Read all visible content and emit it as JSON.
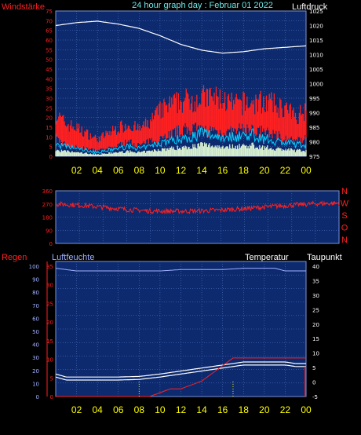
{
  "title": "24 hour graph day : Februar 01 2022",
  "colors": {
    "background": "#000000",
    "plot_bg": "#0d2a6e",
    "grid": "#5a7fd0",
    "border": "#7a92d8",
    "wind": "#ff2020",
    "gust": "#1a66ff",
    "pressure": "#ffffff",
    "temperature": "#ffffff",
    "dewpoint": "#ffffff",
    "rain": "#ff2020",
    "humidity": "#9fb0ff",
    "title": "#70e6e6",
    "xtick": "#ffff00",
    "left_label": "#ff2020",
    "right_label": "#ffffff"
  },
  "chart_data": [
    {
      "type": "line",
      "id": "wind-pressure",
      "title": "24 hour graph day : Februar 01 2022",
      "ylabel_left": "Windstärke",
      "ylabel_right": "Luftdruck",
      "x_ticks": [
        "02",
        "04",
        "06",
        "08",
        "10",
        "12",
        "14",
        "16",
        "18",
        "20",
        "22",
        "00"
      ],
      "y_left_ticks": [
        "75",
        "70",
        "65",
        "60",
        "55",
        "50",
        "45",
        "40",
        "35",
        "30",
        "25",
        "20",
        "15",
        "10",
        "5",
        "0"
      ],
      "y_right_ticks": [
        "1025",
        "1020",
        "1015",
        "1010",
        "1005",
        "1000",
        "995",
        "990",
        "985",
        "980",
        "975"
      ],
      "ylim_left": [
        0,
        75
      ],
      "ylim_right": [
        975,
        1025
      ],
      "grid": true,
      "series": [
        {
          "key": "pressure",
          "axis": "right",
          "x": [
            0,
            2,
            4,
            6,
            8,
            10,
            12,
            14,
            16,
            18,
            20,
            22,
            24
          ],
          "values": [
            1020,
            1021,
            1021.5,
            1020.5,
            1019,
            1016.5,
            1013.5,
            1011.5,
            1010.5,
            1011,
            1012,
            1012.5,
            1013
          ]
        },
        {
          "key": "wind_max",
          "axis": "left",
          "x": [
            0,
            1,
            2,
            3,
            4,
            5,
            6,
            7,
            8,
            9,
            10,
            11,
            12,
            13,
            14,
            15,
            16,
            17,
            18,
            19,
            20,
            21,
            22,
            23,
            24
          ],
          "values": [
            22,
            17,
            15,
            12,
            9,
            12,
            15,
            17,
            14,
            18,
            24,
            27,
            29,
            30,
            31,
            31,
            30,
            27,
            28,
            28,
            29,
            27,
            25,
            21,
            25
          ]
        },
        {
          "key": "wind_min",
          "axis": "left",
          "x": [
            0,
            1,
            2,
            3,
            4,
            5,
            6,
            7,
            8,
            9,
            10,
            11,
            12,
            13,
            14,
            15,
            16,
            17,
            18,
            19,
            20,
            21,
            22,
            23,
            24
          ],
          "values": [
            10,
            6,
            5,
            4,
            3,
            4,
            6,
            8,
            6,
            8,
            10,
            12,
            14,
            15,
            14,
            14,
            13,
            13,
            15,
            14,
            13,
            12,
            10,
            8,
            10
          ]
        },
        {
          "key": "gust",
          "axis": "left",
          "x": [
            0,
            1,
            2,
            3,
            4,
            5,
            6,
            7,
            8,
            9,
            10,
            11,
            12,
            13,
            14,
            15,
            16,
            17,
            18,
            19,
            20,
            21,
            22,
            23,
            24
          ],
          "values": [
            6,
            5,
            4,
            3,
            2,
            3,
            4,
            5,
            4,
            5,
            7,
            8,
            9,
            10,
            12,
            11,
            10,
            10,
            11,
            11,
            9,
            8,
            7,
            6,
            6
          ]
        }
      ]
    },
    {
      "type": "line",
      "id": "wind-direction",
      "x_ticks": [],
      "y_left_ticks": [
        "360",
        "270",
        "180",
        "90",
        "0"
      ],
      "y_right_ticks": [
        "N",
        "W",
        "S",
        "O",
        "N"
      ],
      "ylim": [
        0,
        360
      ],
      "grid": true,
      "series": [
        {
          "key": "direction",
          "x": [
            0,
            2,
            4,
            6,
            8,
            10,
            12,
            14,
            16,
            18,
            20,
            22,
            24
          ],
          "values": [
            270,
            262,
            248,
            232,
            222,
            220,
            222,
            228,
            238,
            250,
            262,
            272,
            275
          ]
        }
      ]
    },
    {
      "type": "line",
      "id": "rain-humidity-temp",
      "ylabel_left": "Regen",
      "ylabel_left2": "Luftfeuchte",
      "ylabel_right": "Temperatur",
      "ylabel_right2": "Taupunkt",
      "x_ticks": [
        "02",
        "04",
        "06",
        "08",
        "10",
        "12",
        "14",
        "16",
        "18",
        "20",
        "22",
        "00"
      ],
      "y_left_ticks": [
        "100",
        "90",
        "80",
        "70",
        "60",
        "50",
        "40",
        "30",
        "20",
        "10",
        "0"
      ],
      "y_mid_ticks": [
        "35",
        "30",
        "25",
        "20",
        "15",
        "10",
        "5",
        "0"
      ],
      "y_right_ticks": [
        "40",
        "35",
        "30",
        "25",
        "20",
        "15",
        "10",
        "5",
        "0",
        "-5"
      ],
      "ylim_left": [
        0,
        100
      ],
      "ylim_right": [
        -5,
        40
      ],
      "grid": true,
      "series": [
        {
          "key": "humidity",
          "axis": "left",
          "x": [
            0,
            1,
            2,
            4,
            6,
            8,
            10,
            12,
            14,
            16,
            18,
            20,
            21,
            22,
            24
          ],
          "values": [
            95,
            94,
            93,
            93,
            93,
            93,
            93,
            94,
            94,
            94,
            95,
            95,
            95,
            93,
            93
          ]
        },
        {
          "key": "temperature",
          "axis": "right",
          "x": [
            0,
            1,
            2,
            4,
            6,
            8,
            10,
            12,
            14,
            16,
            17,
            18,
            20,
            22,
            23,
            24
          ],
          "values": [
            2.5,
            1.5,
            1.5,
            1.5,
            1.5,
            1.7,
            2.5,
            3.5,
            4.5,
            5.5,
            6,
            6.5,
            6.5,
            6.5,
            6,
            6
          ]
        },
        {
          "key": "dewpoint",
          "axis": "right",
          "x": [
            0,
            1,
            2,
            4,
            6,
            8,
            10,
            12,
            14,
            16,
            17,
            18,
            20,
            22,
            23,
            24
          ],
          "values": [
            1.5,
            0.5,
            0.5,
            0.5,
            0.5,
            0.7,
            1.5,
            2.5,
            3.5,
            4.5,
            5,
            5.5,
            5.5,
            5.5,
            5,
            5
          ]
        },
        {
          "key": "rain",
          "axis": "left2",
          "x": [
            0,
            2,
            4,
            6,
            8,
            9,
            10,
            11,
            12,
            13,
            14,
            15,
            16,
            17,
            18,
            19,
            20,
            21,
            22,
            23,
            24
          ],
          "values": [
            0,
            0,
            0,
            0,
            0,
            0,
            1,
            2,
            2,
            3,
            4,
            6,
            8,
            10,
            10,
            10,
            10,
            10,
            10,
            10,
            10
          ]
        }
      ]
    }
  ]
}
